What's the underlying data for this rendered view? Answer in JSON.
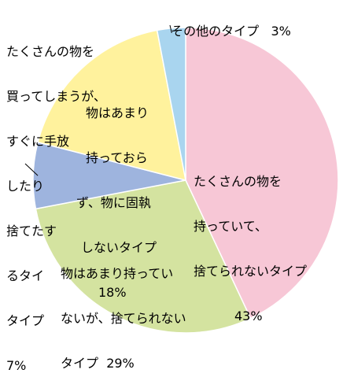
{
  "chart_data": {
    "type": "pie",
    "start_angle_deg": 0,
    "direction": "clockwise",
    "slices": [
      {
        "lines": [
          "たくさんの物を",
          "持っていて、",
          "捨てられないタイプ"
        ],
        "value": 43,
        "value_label": "43%",
        "color": "#F7C7D6"
      },
      {
        "lines": [
          "物はあまり持ってい",
          "ないが、捨てられない",
          "タイプ"
        ],
        "value": 29,
        "value_label": "29%",
        "color": "#D4E3A0"
      },
      {
        "lines": [
          "たくさんの物を",
          "買ってしまうが、",
          "すぐに手放",
          "したり",
          "捨てたす",
          "るタイ",
          "タイプ"
        ],
        "value": 7,
        "value_label": "7%",
        "color": "#9EB4DE"
      },
      {
        "lines": [
          "物はあまり",
          "持っておら",
          "ず、物に固執",
          "しないタイプ"
        ],
        "value": 18,
        "value_label": "18%",
        "color": "#FFF29D"
      },
      {
        "lines": [
          "その他のタイプ"
        ],
        "value": 3,
        "value_label": "3%",
        "color": "#A9D5EF"
      }
    ]
  }
}
